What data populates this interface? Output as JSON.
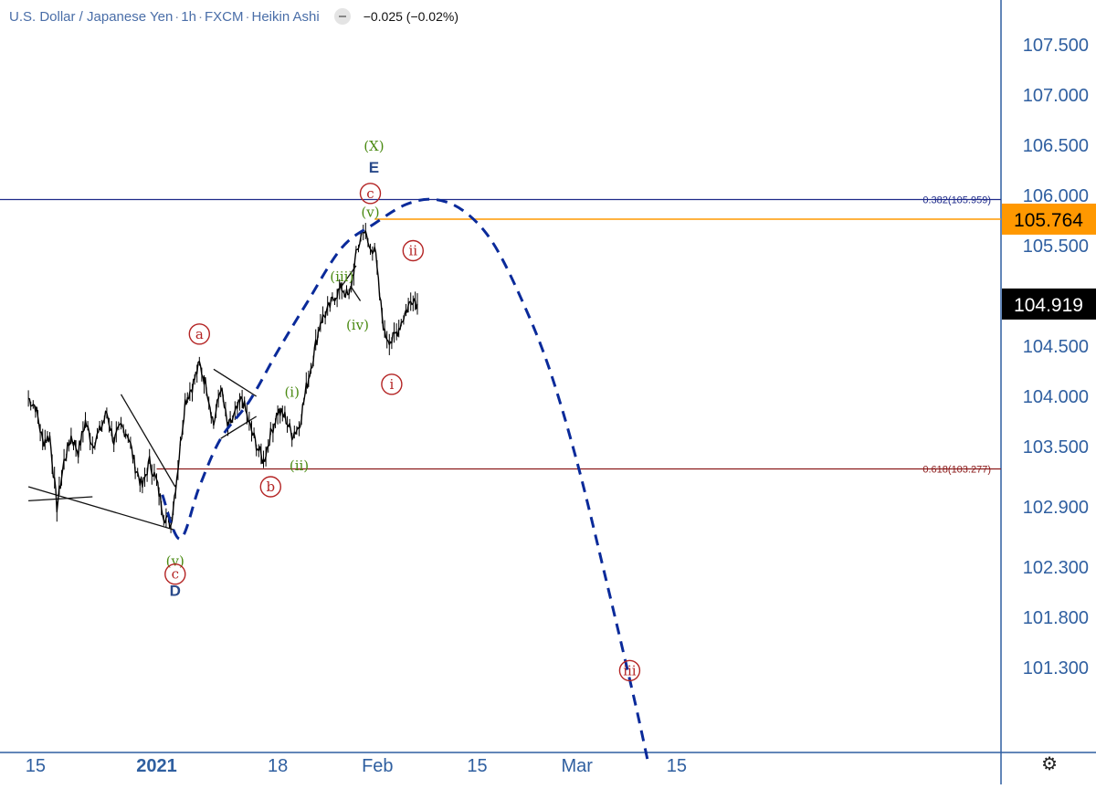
{
  "header": {
    "symbol": "U.S. Dollar / Japanese Yen",
    "interval": "1h",
    "source": "FXCM",
    "style": "Heikin Ashi",
    "change": "−0.025 (−0.02%)"
  },
  "chart_data": {
    "type": "line",
    "xlabel": "",
    "ylabel": "",
    "x_ticks": [
      {
        "label": "15",
        "day": -17
      },
      {
        "label": "2021",
        "day": 0
      },
      {
        "label": "18",
        "day": 17
      },
      {
        "label": "Feb",
        "day": 31
      },
      {
        "label": "15",
        "day": 45
      },
      {
        "label": "Mar",
        "day": 59
      },
      {
        "label": "15",
        "day": 73
      }
    ],
    "y_ticks": [
      {
        "label": "107.500",
        "value": 107.5
      },
      {
        "label": "107.000",
        "value": 107.0
      },
      {
        "label": "106.500",
        "value": 106.5
      },
      {
        "label": "106.000",
        "value": 106.0
      },
      {
        "label": "105.500",
        "value": 105.5
      },
      {
        "label": "104.500",
        "value": 104.5
      },
      {
        "label": "104.000",
        "value": 104.0
      },
      {
        "label": "103.500",
        "value": 103.5
      },
      {
        "label": "102.900",
        "value": 102.9
      },
      {
        "label": "102.300",
        "value": 102.3
      },
      {
        "label": "101.800",
        "value": 101.8
      },
      {
        "label": "101.300",
        "value": 101.3
      }
    ],
    "price_series": {
      "name": "USDJPY",
      "points": [
        [
          -18,
          103.98
        ],
        [
          -17,
          103.9
        ],
        [
          -16,
          103.55
        ],
        [
          -15,
          103.6
        ],
        [
          -14,
          102.9
        ],
        [
          -13,
          103.35
        ],
        [
          -12,
          103.6
        ],
        [
          -11,
          103.45
        ],
        [
          -10,
          103.75
        ],
        [
          -9,
          103.52
        ],
        [
          -8,
          103.65
        ],
        [
          -7,
          103.84
        ],
        [
          -6,
          103.55
        ],
        [
          -5,
          103.7
        ],
        [
          -4,
          103.62
        ],
        [
          -3,
          103.3
        ],
        [
          -2,
          103.1
        ],
        [
          -1,
          103.35
        ],
        [
          0,
          103.15
        ],
        [
          1,
          102.82
        ],
        [
          2,
          102.72
        ],
        [
          3,
          103.3
        ],
        [
          4,
          103.95
        ],
        [
          5,
          104.1
        ],
        [
          6,
          104.32
        ],
        [
          7,
          104.1
        ],
        [
          8,
          103.72
        ],
        [
          9,
          104.1
        ],
        [
          10,
          103.68
        ],
        [
          11,
          103.82
        ],
        [
          12,
          103.98
        ],
        [
          13,
          103.72
        ],
        [
          14,
          103.52
        ],
        [
          15,
          103.35
        ],
        [
          16,
          103.62
        ],
        [
          17,
          103.85
        ],
        [
          18,
          103.8
        ],
        [
          19,
          103.62
        ],
        [
          20,
          103.7
        ],
        [
          21,
          104.08
        ],
        [
          22,
          104.4
        ],
        [
          23,
          104.75
        ],
        [
          24,
          104.85
        ],
        [
          25,
          105.0
        ],
        [
          26,
          105.08
        ],
        [
          27,
          104.98
        ],
        [
          28,
          105.4
        ],
        [
          29,
          105.68
        ],
        [
          30,
          105.45
        ],
        [
          30.6,
          105.5
        ],
        [
          31.3,
          105.0
        ],
        [
          32,
          104.62
        ],
        [
          33,
          104.55
        ],
        [
          34,
          104.68
        ],
        [
          35,
          104.85
        ],
        [
          36,
          104.99
        ],
        [
          36.6,
          104.92
        ]
      ]
    },
    "projection": {
      "name": "projected path",
      "points": [
        [
          0.8,
          103.02
        ],
        [
          3.3,
          102.58
        ],
        [
          6,
          103.1
        ],
        [
          9,
          103.58
        ],
        [
          13,
          103.95
        ],
        [
          17,
          104.45
        ],
        [
          21,
          104.92
        ],
        [
          26,
          105.48
        ],
        [
          30.6,
          105.72
        ],
        [
          35,
          105.91
        ],
        [
          39,
          105.96
        ],
        [
          43,
          105.85
        ],
        [
          47,
          105.55
        ],
        [
          51,
          105.0
        ],
        [
          55,
          104.3
        ],
        [
          59,
          103.35
        ],
        [
          63,
          102.2
        ],
        [
          67,
          101.0
        ],
        [
          69,
          100.35
        ]
      ]
    },
    "fib_levels": [
      {
        "ratio": "0.382",
        "value": 105.959,
        "label": "0.382(105.959)",
        "color": "#1e2a8a"
      },
      {
        "ratio": "0.618",
        "value": 103.277,
        "label": "0.618(103.277)",
        "color": "#8b1a1a"
      }
    ],
    "price_markers": [
      {
        "value": 105.764,
        "label": "105.764",
        "color": "#ff9800",
        "text_color": "#000000"
      },
      {
        "value": 104.919,
        "label": "104.919",
        "color": "#000000",
        "text_color": "#ffffff"
      }
    ],
    "annotations": [
      {
        "text": "(X)",
        "x": 30.5,
        "y": 106.5,
        "style": "green"
      },
      {
        "text": "E",
        "x": 30.5,
        "y": 106.28,
        "style": "blue"
      },
      {
        "text": "c",
        "x": 30.0,
        "y": 106.02,
        "style": "red-circle"
      },
      {
        "text": "(v)",
        "x": 30.0,
        "y": 105.84,
        "style": "green"
      },
      {
        "text": "ii",
        "x": 36.0,
        "y": 105.45,
        "style": "red-circle"
      },
      {
        "text": "(iii)",
        "x": 26.0,
        "y": 105.2,
        "style": "green"
      },
      {
        "text": "(iv)",
        "x": 28.2,
        "y": 104.72,
        "style": "green"
      },
      {
        "text": "i",
        "x": 33.0,
        "y": 104.12,
        "style": "red-circle"
      },
      {
        "text": "a",
        "x": 6.0,
        "y": 104.62,
        "style": "red-circle"
      },
      {
        "text": "(i)",
        "x": 19.0,
        "y": 104.05,
        "style": "green"
      },
      {
        "text": "(ii)",
        "x": 20.0,
        "y": 103.32,
        "style": "green"
      },
      {
        "text": "b",
        "x": 16.0,
        "y": 103.1,
        "style": "red-circle"
      },
      {
        "text": "(v)",
        "x": 2.6,
        "y": 102.37,
        "style": "green"
      },
      {
        "text": "c",
        "x": 2.6,
        "y": 102.23,
        "style": "red-circle"
      },
      {
        "text": "D",
        "x": 2.6,
        "y": 102.07,
        "style": "blue"
      },
      {
        "text": "iii",
        "x": 66.4,
        "y": 101.27,
        "style": "red-circle"
      }
    ],
    "trendlines": [
      [
        [
          -18,
          102.96
        ],
        [
          -9,
          103.0
        ]
      ],
      [
        [
          -18,
          103.1
        ],
        [
          2.5,
          102.67
        ]
      ],
      [
        [
          -5,
          104.02
        ],
        [
          2.6,
          103.1
        ]
      ],
      [
        [
          8,
          104.27
        ],
        [
          14,
          104.0
        ]
      ],
      [
        [
          9,
          103.58
        ],
        [
          14,
          103.8
        ]
      ],
      [
        [
          25.8,
          105.08
        ],
        [
          28,
          105.3
        ]
      ],
      [
        [
          27.2,
          105.1
        ],
        [
          28.6,
          104.95
        ]
      ]
    ]
  },
  "colors": {
    "axis_text": "#2f5fa0",
    "annotation_green": "#4a8a12",
    "annotation_red": "#b42424",
    "annotation_blue": "#2a4a8a",
    "projection": "#0a2a9a",
    "price_line": "#000000"
  },
  "icons": {
    "settings": "gear-icon"
  }
}
